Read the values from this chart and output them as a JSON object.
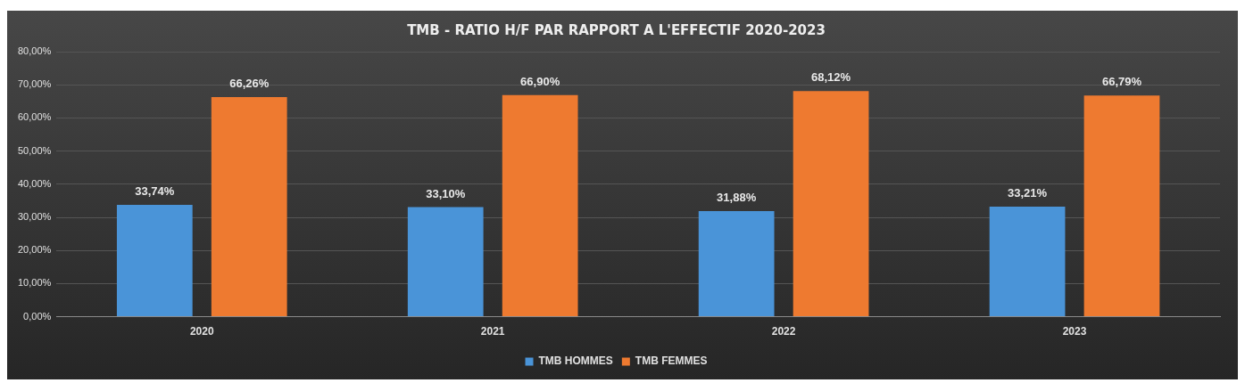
{
  "chart_data": {
    "type": "bar",
    "title": "TMB - RATIO H/F PAR RAPPORT A L'EFFECTIF 2020-2023",
    "categories": [
      "2020",
      "2021",
      "2022",
      "2023"
    ],
    "series": [
      {
        "name": "TMB HOMMES",
        "color": "#4a94d8",
        "values": [
          33.74,
          33.1,
          31.88,
          33.21
        ],
        "value_labels": [
          "33,74%",
          "33,10%",
          "31,88%",
          "33,21%"
        ]
      },
      {
        "name": "TMB FEMMES",
        "color": "#ee7a30",
        "values": [
          66.26,
          66.9,
          68.12,
          66.79
        ],
        "value_labels": [
          "66,26%",
          "66,90%",
          "68,12%",
          "66,79%"
        ]
      }
    ],
    "ylim": [
      0,
      80
    ],
    "yticks": [
      {
        "value": 0,
        "label": "0,00%"
      },
      {
        "value": 10,
        "label": "10,00%"
      },
      {
        "value": 20,
        "label": "20,00%"
      },
      {
        "value": 30,
        "label": "30,00%"
      },
      {
        "value": 40,
        "label": "40,00%"
      },
      {
        "value": 50,
        "label": "50,00%"
      },
      {
        "value": 60,
        "label": "60,00%"
      },
      {
        "value": 70,
        "label": "70,00%"
      },
      {
        "value": 80,
        "label": "80,00%"
      }
    ],
    "grid": "y",
    "legend": "bottom"
  }
}
